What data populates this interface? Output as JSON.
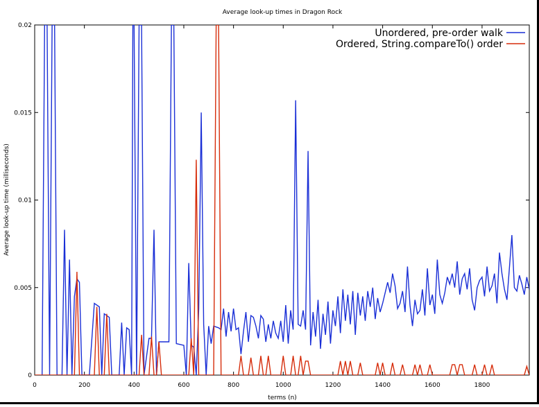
{
  "chart_data": {
    "type": "line",
    "title": "Average look-up times in Dragon Rock",
    "xlabel": "terms (n)",
    "ylabel": "Average look-up time (milliseconds)",
    "xlim": [
      0,
      1990
    ],
    "ylim": [
      0,
      0.02
    ],
    "x_ticks": [
      {
        "value": 0,
        "label": "0"
      },
      {
        "value": 200,
        "label": "200"
      },
      {
        "value": 400,
        "label": "400"
      },
      {
        "value": 600,
        "label": "600"
      },
      {
        "value": 800,
        "label": "800"
      },
      {
        "value": 1000,
        "label": "1000"
      },
      {
        "value": 1200,
        "label": "1200"
      },
      {
        "value": 1400,
        "label": "1400"
      },
      {
        "value": 1600,
        "label": "1600"
      },
      {
        "value": 1800,
        "label": "1800"
      }
    ],
    "y_ticks": [
      {
        "value": 0,
        "label": "0"
      },
      {
        "value": 0.005,
        "label": "0.005"
      },
      {
        "value": 0.01,
        "label": "0.01"
      },
      {
        "value": 0.015,
        "label": "0.015"
      },
      {
        "value": 0.02,
        "label": "0.02"
      }
    ],
    "grid": false,
    "legend_position": "top-right",
    "series": [
      {
        "name": "Unordered, pre-order walk",
        "color": "#1a2fd6",
        "points": [
          [
            30,
            0
          ],
          [
            40,
            0.02
          ],
          [
            50,
            0.02
          ],
          [
            60,
            0
          ],
          [
            70,
            0.02
          ],
          [
            80,
            0.02
          ],
          [
            90,
            0
          ],
          [
            100,
            0
          ],
          [
            110,
            0
          ],
          [
            120,
            0.0083
          ],
          [
            130,
            0
          ],
          [
            140,
            0.0066
          ],
          [
            150,
            0
          ],
          [
            160,
            0.0045
          ],
          [
            170,
            0.0055
          ],
          [
            180,
            0.0053
          ],
          [
            190,
            0
          ],
          [
            200,
            0
          ],
          [
            220,
            0
          ],
          [
            240,
            0.0041
          ],
          [
            260,
            0.0039
          ],
          [
            270,
            0
          ],
          [
            280,
            0.0035
          ],
          [
            300,
            0.0033
          ],
          [
            310,
            0
          ],
          [
            320,
            0
          ],
          [
            340,
            0
          ],
          [
            350,
            0.003
          ],
          [
            360,
            0
          ],
          [
            370,
            0.0027
          ],
          [
            380,
            0.0026
          ],
          [
            390,
            0
          ],
          [
            395,
            0.02
          ],
          [
            400,
            0.02
          ],
          [
            410,
            0
          ],
          [
            420,
            0.02
          ],
          [
            430,
            0.02
          ],
          [
            440,
            0
          ],
          [
            460,
            0.0021
          ],
          [
            470,
            0.0021
          ],
          [
            480,
            0.0083
          ],
          [
            490,
            0
          ],
          [
            500,
            0.0019
          ],
          [
            540,
            0.0019
          ],
          [
            550,
            0.02
          ],
          [
            560,
            0.02
          ],
          [
            570,
            0.0018
          ],
          [
            600,
            0.0017
          ],
          [
            610,
            0
          ],
          [
            620,
            0.0064
          ],
          [
            630,
            0.0017
          ],
          [
            640,
            0.0016
          ],
          [
            650,
            0
          ],
          [
            660,
            0.0038
          ],
          [
            670,
            0.015
          ],
          [
            680,
            0.0029
          ],
          [
            690,
            0
          ],
          [
            700,
            0.0028
          ],
          [
            710,
            0.0018
          ],
          [
            720,
            0.0028
          ],
          [
            740,
            0.0027
          ],
          [
            750,
            0.0026
          ],
          [
            760,
            0.0038
          ],
          [
            770,
            0.0022
          ],
          [
            780,
            0.0036
          ],
          [
            790,
            0.0025
          ],
          [
            800,
            0.0038
          ],
          [
            810,
            0.0026
          ],
          [
            820,
            0.0027
          ],
          [
            830,
            0.0012
          ],
          [
            840,
            0.0025
          ],
          [
            850,
            0.0036
          ],
          [
            860,
            0.0019
          ],
          [
            870,
            0.0034
          ],
          [
            880,
            0.0033
          ],
          [
            890,
            0.0028
          ],
          [
            900,
            0.0021
          ],
          [
            910,
            0.0034
          ],
          [
            920,
            0.0032
          ],
          [
            930,
            0.0019
          ],
          [
            940,
            0.0029
          ],
          [
            950,
            0.0021
          ],
          [
            960,
            0.0031
          ],
          [
            970,
            0.0024
          ],
          [
            980,
            0.0021
          ],
          [
            990,
            0.0031
          ],
          [
            1000,
            0.0019
          ],
          [
            1010,
            0.004
          ],
          [
            1020,
            0.0018
          ],
          [
            1030,
            0.0037
          ],
          [
            1040,
            0.0026
          ],
          [
            1050,
            0.0157
          ],
          [
            1060,
            0.0029
          ],
          [
            1070,
            0.0028
          ],
          [
            1080,
            0.0037
          ],
          [
            1090,
            0.0026
          ],
          [
            1100,
            0.0128
          ],
          [
            1110,
            0.0017
          ],
          [
            1120,
            0.0036
          ],
          [
            1130,
            0.0022
          ],
          [
            1140,
            0.0043
          ],
          [
            1150,
            0.0015
          ],
          [
            1160,
            0.0035
          ],
          [
            1170,
            0.0023
          ],
          [
            1180,
            0.0042
          ],
          [
            1190,
            0.0018
          ],
          [
            1200,
            0.0037
          ],
          [
            1210,
            0.0028
          ],
          [
            1220,
            0.0045
          ],
          [
            1230,
            0.0024
          ],
          [
            1240,
            0.0049
          ],
          [
            1250,
            0.0031
          ],
          [
            1260,
            0.0046
          ],
          [
            1270,
            0.0029
          ],
          [
            1280,
            0.0048
          ],
          [
            1290,
            0.0023
          ],
          [
            1300,
            0.0047
          ],
          [
            1310,
            0.0034
          ],
          [
            1320,
            0.0045
          ],
          [
            1330,
            0.0031
          ],
          [
            1340,
            0.0048
          ],
          [
            1350,
            0.0039
          ],
          [
            1360,
            0.005
          ],
          [
            1370,
            0.0032
          ],
          [
            1380,
            0.0044
          ],
          [
            1390,
            0.0036
          ],
          [
            1400,
            0.0041
          ],
          [
            1410,
            0.0047
          ],
          [
            1420,
            0.0053
          ],
          [
            1430,
            0.0047
          ],
          [
            1440,
            0.0058
          ],
          [
            1450,
            0.0051
          ],
          [
            1460,
            0.0038
          ],
          [
            1470,
            0.0041
          ],
          [
            1480,
            0.0048
          ],
          [
            1490,
            0.0036
          ],
          [
            1500,
            0.0062
          ],
          [
            1510,
            0.004
          ],
          [
            1520,
            0.0028
          ],
          [
            1530,
            0.0043
          ],
          [
            1540,
            0.0035
          ],
          [
            1550,
            0.0037
          ],
          [
            1560,
            0.0049
          ],
          [
            1570,
            0.0034
          ],
          [
            1580,
            0.0061
          ],
          [
            1590,
            0.004
          ],
          [
            1600,
            0.0046
          ],
          [
            1610,
            0.0035
          ],
          [
            1620,
            0.0066
          ],
          [
            1630,
            0.0046
          ],
          [
            1640,
            0.0041
          ],
          [
            1650,
            0.0047
          ],
          [
            1660,
            0.0056
          ],
          [
            1670,
            0.0052
          ],
          [
            1680,
            0.0058
          ],
          [
            1690,
            0.005
          ],
          [
            1700,
            0.0065
          ],
          [
            1710,
            0.0046
          ],
          [
            1720,
            0.0055
          ],
          [
            1730,
            0.0058
          ],
          [
            1740,
            0.0049
          ],
          [
            1750,
            0.0061
          ],
          [
            1760,
            0.0043
          ],
          [
            1770,
            0.0037
          ],
          [
            1780,
            0.005
          ],
          [
            1790,
            0.0054
          ],
          [
            1800,
            0.0056
          ],
          [
            1810,
            0.0045
          ],
          [
            1820,
            0.0062
          ],
          [
            1830,
            0.0048
          ],
          [
            1840,
            0.0051
          ],
          [
            1850,
            0.0058
          ],
          [
            1860,
            0.0041
          ],
          [
            1870,
            0.007
          ],
          [
            1880,
            0.0058
          ],
          [
            1890,
            0.0049
          ],
          [
            1900,
            0.0043
          ],
          [
            1910,
            0.0061
          ],
          [
            1920,
            0.008
          ],
          [
            1930,
            0.005
          ],
          [
            1940,
            0.0048
          ],
          [
            1950,
            0.0057
          ],
          [
            1960,
            0.0052
          ],
          [
            1970,
            0.0046
          ],
          [
            1980,
            0.0056
          ],
          [
            1990,
            0.0049
          ]
        ]
      },
      {
        "name": "Ordered, String.compareTo() order",
        "color": "#d62c0a",
        "points": [
          [
            0,
            0
          ],
          [
            150,
            0
          ],
          [
            160,
            0
          ],
          [
            170,
            0.0059
          ],
          [
            180,
            0
          ],
          [
            240,
            0
          ],
          [
            250,
            0.0039
          ],
          [
            260,
            0
          ],
          [
            280,
            0
          ],
          [
            290,
            0.0035
          ],
          [
            300,
            0
          ],
          [
            420,
            0
          ],
          [
            430,
            0.0023
          ],
          [
            440,
            0
          ],
          [
            460,
            0
          ],
          [
            470,
            0.0022
          ],
          [
            480,
            0
          ],
          [
            490,
            0
          ],
          [
            500,
            0.0019
          ],
          [
            510,
            0
          ],
          [
            620,
            0
          ],
          [
            630,
            0.0021
          ],
          [
            640,
            0
          ],
          [
            650,
            0.0123
          ],
          [
            660,
            0
          ],
          [
            720,
            0
          ],
          [
            730,
            0.02
          ],
          [
            740,
            0.02
          ],
          [
            750,
            0
          ],
          [
            820,
            0
          ],
          [
            830,
            0.0011
          ],
          [
            840,
            0
          ],
          [
            860,
            0
          ],
          [
            870,
            0.001
          ],
          [
            880,
            0
          ],
          [
            900,
            0
          ],
          [
            910,
            0.0011
          ],
          [
            920,
            0
          ],
          [
            930,
            0
          ],
          [
            940,
            0.0011
          ],
          [
            950,
            0
          ],
          [
            990,
            0
          ],
          [
            1000,
            0.0011
          ],
          [
            1010,
            0
          ],
          [
            1030,
            0
          ],
          [
            1040,
            0.0011
          ],
          [
            1050,
            0
          ],
          [
            1060,
            0
          ],
          [
            1070,
            0.0011
          ],
          [
            1080,
            0
          ],
          [
            1090,
            0.0008
          ],
          [
            1100,
            0.0008
          ],
          [
            1110,
            0
          ],
          [
            1220,
            0
          ],
          [
            1230,
            0.0008
          ],
          [
            1240,
            0
          ],
          [
            1250,
            0.0008
          ],
          [
            1260,
            0
          ],
          [
            1270,
            0.0008
          ],
          [
            1280,
            0
          ],
          [
            1300,
            0
          ],
          [
            1310,
            0.0007
          ],
          [
            1320,
            0
          ],
          [
            1370,
            0
          ],
          [
            1380,
            0.0007
          ],
          [
            1390,
            0
          ],
          [
            1400,
            0.0007
          ],
          [
            1410,
            0
          ],
          [
            1430,
            0
          ],
          [
            1440,
            0.0007
          ],
          [
            1450,
            0
          ],
          [
            1470,
            0
          ],
          [
            1480,
            0.0006
          ],
          [
            1490,
            0
          ],
          [
            1520,
            0
          ],
          [
            1530,
            0.0006
          ],
          [
            1540,
            0
          ],
          [
            1550,
            0.0006
          ],
          [
            1560,
            0
          ],
          [
            1580,
            0
          ],
          [
            1590,
            0.0006
          ],
          [
            1600,
            0
          ],
          [
            1670,
            0
          ],
          [
            1680,
            0.0006
          ],
          [
            1690,
            0.0006
          ],
          [
            1700,
            0
          ],
          [
            1710,
            0.0006
          ],
          [
            1720,
            0.0006
          ],
          [
            1730,
            0
          ],
          [
            1760,
            0
          ],
          [
            1770,
            0.0006
          ],
          [
            1780,
            0
          ],
          [
            1800,
            0
          ],
          [
            1810,
            0.0006
          ],
          [
            1820,
            0
          ],
          [
            1830,
            0
          ],
          [
            1840,
            0.0006
          ],
          [
            1850,
            0
          ],
          [
            1970,
            0
          ],
          [
            1980,
            0.0005
          ],
          [
            1990,
            0
          ]
        ]
      }
    ]
  }
}
